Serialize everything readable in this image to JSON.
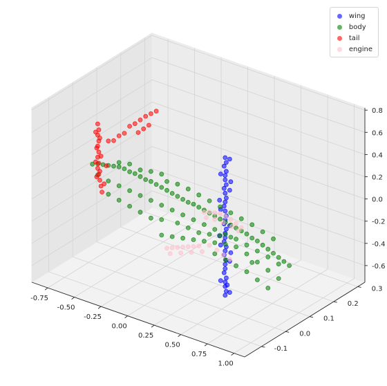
{
  "chart_data": {
    "type": "scatter",
    "projection": "3d",
    "title": "",
    "grid": true,
    "legend": {
      "placement": "top-right"
    },
    "axes": {
      "x": {
        "range": [
          -0.9,
          1.1
        ],
        "ticks": [
          "-0.75",
          "-0.50",
          "-0.25",
          "0.00",
          "0.25",
          "0.50",
          "0.75",
          "1.00"
        ]
      },
      "y": {
        "range": [
          -0.17,
          0.33
        ],
        "ticks": [
          "-0.1",
          "0.0",
          "0.1",
          "0.2",
          "0.3"
        ]
      },
      "z": {
        "range": [
          -0.75,
          0.82
        ],
        "ticks": [
          "-0.6",
          "-0.4",
          "-0.2",
          "0.0",
          "0.2",
          "0.4",
          "0.6",
          "0.8"
        ]
      }
    },
    "series": [
      {
        "name": "wing",
        "color": "#0000ff",
        "points": [
          [
            0.42,
            0.05,
            0.52
          ],
          [
            0.43,
            0.05,
            0.48
          ],
          [
            0.41,
            0.05,
            0.44
          ],
          [
            0.43,
            0.05,
            0.4
          ],
          [
            0.42,
            0.05,
            0.36
          ],
          [
            0.42,
            0.05,
            0.32
          ],
          [
            0.43,
            0.05,
            0.28
          ],
          [
            0.41,
            0.05,
            0.24
          ],
          [
            0.42,
            0.05,
            0.2
          ],
          [
            0.43,
            0.05,
            0.16
          ],
          [
            0.42,
            0.05,
            0.12
          ],
          [
            0.41,
            0.05,
            0.08
          ],
          [
            0.42,
            0.05,
            0.04
          ],
          [
            0.43,
            0.05,
            0.0
          ],
          [
            0.42,
            0.05,
            -0.04
          ],
          [
            0.41,
            0.05,
            -0.08
          ],
          [
            0.43,
            0.05,
            -0.12
          ],
          [
            0.42,
            0.05,
            -0.16
          ],
          [
            0.42,
            0.05,
            -0.2
          ],
          [
            0.41,
            0.05,
            -0.24
          ],
          [
            0.43,
            0.05,
            -0.28
          ],
          [
            0.42,
            0.05,
            -0.32
          ],
          [
            0.41,
            0.05,
            -0.36
          ],
          [
            0.43,
            0.05,
            -0.4
          ],
          [
            0.42,
            0.05,
            -0.44
          ],
          [
            0.42,
            0.05,
            -0.48
          ],
          [
            0.41,
            0.05,
            -0.52
          ],
          [
            0.43,
            0.05,
            -0.56
          ],
          [
            0.42,
            0.05,
            -0.6
          ],
          [
            0.42,
            0.05,
            -0.64
          ],
          [
            0.43,
            0.05,
            -0.68
          ],
          [
            0.42,
            0.05,
            -0.72
          ],
          [
            0.44,
            0.06,
            0.5
          ],
          [
            0.4,
            0.04,
            0.38
          ],
          [
            0.44,
            0.06,
            0.22
          ],
          [
            0.4,
            0.04,
            0.06
          ],
          [
            0.44,
            0.06,
            -0.1
          ],
          [
            0.4,
            0.04,
            -0.26
          ],
          [
            0.44,
            0.06,
            -0.42
          ],
          [
            0.4,
            0.04,
            -0.58
          ],
          [
            0.44,
            0.06,
            -0.7
          ],
          [
            0.45,
            0.06,
            -0.34
          ],
          [
            0.39,
            0.04,
            -0.18
          ],
          [
            0.45,
            0.06,
            0.3
          ],
          [
            0.39,
            0.04,
            0.14
          ],
          [
            0.44,
            0.05,
            -0.62
          ]
        ]
      },
      {
        "name": "body",
        "color": "#008000",
        "points": [
          [
            -0.85,
            0.06,
            0.02
          ],
          [
            -0.8,
            0.06,
            0.04
          ],
          [
            -0.75,
            0.06,
            0.05
          ],
          [
            -0.7,
            0.06,
            0.06
          ],
          [
            -0.65,
            0.06,
            0.07
          ],
          [
            -0.6,
            0.06,
            0.08
          ],
          [
            -0.55,
            0.06,
            0.08
          ],
          [
            -0.5,
            0.06,
            0.07
          ],
          [
            -0.45,
            0.06,
            0.07
          ],
          [
            -0.4,
            0.06,
            0.06
          ],
          [
            -0.35,
            0.06,
            0.05
          ],
          [
            -0.3,
            0.06,
            0.05
          ],
          [
            -0.25,
            0.06,
            0.04
          ],
          [
            -0.2,
            0.06,
            0.03
          ],
          [
            -0.15,
            0.06,
            0.02
          ],
          [
            -0.1,
            0.06,
            0.01
          ],
          [
            -0.05,
            0.06,
            0.0
          ],
          [
            0.0,
            0.06,
            -0.01
          ],
          [
            0.05,
            0.06,
            -0.02
          ],
          [
            0.1,
            0.06,
            -0.02
          ],
          [
            0.15,
            0.06,
            -0.03
          ],
          [
            0.2,
            0.06,
            -0.04
          ],
          [
            0.25,
            0.06,
            -0.05
          ],
          [
            0.3,
            0.06,
            -0.06
          ],
          [
            0.35,
            0.06,
            -0.07
          ],
          [
            0.4,
            0.06,
            -0.08
          ],
          [
            0.45,
            0.06,
            -0.09
          ],
          [
            0.5,
            0.06,
            -0.1
          ],
          [
            0.55,
            0.06,
            -0.11
          ],
          [
            0.6,
            0.06,
            -0.12
          ],
          [
            0.65,
            0.06,
            -0.14
          ],
          [
            0.7,
            0.06,
            -0.15
          ],
          [
            0.75,
            0.06,
            -0.17
          ],
          [
            0.8,
            0.06,
            -0.19
          ],
          [
            0.85,
            0.06,
            -0.21
          ],
          [
            0.9,
            0.06,
            -0.23
          ],
          [
            0.95,
            0.06,
            -0.25
          ],
          [
            1.0,
            0.06,
            -0.27
          ],
          [
            -0.8,
            0.06,
            -0.06
          ],
          [
            -0.7,
            0.06,
            -0.08
          ],
          [
            -0.6,
            0.06,
            -0.09
          ],
          [
            -0.5,
            0.06,
            -0.1
          ],
          [
            -0.4,
            0.06,
            -0.11
          ],
          [
            -0.3,
            0.06,
            -0.12
          ],
          [
            -0.2,
            0.06,
            -0.13
          ],
          [
            -0.1,
            0.06,
            -0.14
          ],
          [
            0.0,
            0.06,
            -0.15
          ],
          [
            0.1,
            0.06,
            -0.16
          ],
          [
            0.2,
            0.06,
            -0.17
          ],
          [
            0.3,
            0.06,
            -0.18
          ],
          [
            0.4,
            0.06,
            -0.19
          ],
          [
            0.5,
            0.06,
            -0.2
          ],
          [
            0.6,
            0.06,
            -0.22
          ],
          [
            0.7,
            0.06,
            -0.24
          ],
          [
            0.8,
            0.06,
            -0.26
          ],
          [
            0.9,
            0.06,
            -0.29
          ],
          [
            -0.2,
            0.06,
            -0.4
          ],
          [
            -0.1,
            0.06,
            -0.38
          ],
          [
            0.0,
            0.06,
            -0.36
          ],
          [
            0.1,
            0.06,
            -0.34
          ],
          [
            0.2,
            0.06,
            -0.32
          ],
          [
            0.3,
            0.06,
            -0.3
          ],
          [
            0.4,
            0.06,
            -0.28
          ],
          [
            0.5,
            0.06,
            -0.27
          ],
          [
            0.6,
            0.06,
            -0.3
          ],
          [
            0.7,
            0.06,
            -0.34
          ],
          [
            0.8,
            0.06,
            -0.38
          ],
          [
            0.9,
            0.06,
            -0.42
          ],
          [
            -0.15,
            0.06,
            0.1
          ],
          [
            -0.05,
            0.06,
            0.11
          ],
          [
            0.05,
            0.06,
            0.1
          ],
          [
            0.15,
            0.06,
            0.08
          ],
          [
            0.25,
            0.06,
            0.06
          ],
          [
            0.35,
            0.06,
            0.04
          ],
          [
            0.45,
            0.06,
            0.02
          ],
          [
            0.55,
            0.06,
            0.0
          ],
          [
            0.65,
            0.06,
            -0.02
          ],
          [
            0.75,
            0.06,
            -0.05
          ],
          [
            0.85,
            0.06,
            -0.08
          ],
          [
            -0.7,
            0.06,
            -0.2
          ],
          [
            -0.6,
            0.06,
            -0.22
          ],
          [
            -0.5,
            0.06,
            -0.24
          ],
          [
            -0.4,
            0.06,
            -0.26
          ],
          [
            -0.3,
            0.06,
            -0.28
          ],
          [
            -0.2,
            0.06,
            -0.26
          ],
          [
            0.3,
            0.06,
            -0.4
          ],
          [
            0.4,
            0.06,
            -0.42
          ],
          [
            0.5,
            0.06,
            -0.44
          ],
          [
            0.6,
            0.06,
            -0.46
          ],
          [
            0.7,
            0.06,
            -0.5
          ],
          [
            0.8,
            0.06,
            -0.54
          ],
          [
            -0.05,
            0.06,
            -0.24
          ],
          [
            0.05,
            0.06,
            -0.25
          ],
          [
            0.15,
            0.06,
            -0.26
          ],
          [
            0.25,
            0.06,
            -0.24
          ],
          [
            0.35,
            0.06,
            -0.22
          ],
          [
            0.45,
            0.06,
            -0.2
          ],
          [
            -0.6,
            0.06,
            0.12
          ],
          [
            -0.5,
            0.06,
            0.14
          ],
          [
            -0.4,
            0.06,
            0.12
          ],
          [
            -0.3,
            0.06,
            0.14
          ],
          [
            -0.2,
            0.06,
            0.15
          ],
          [
            0.65,
            0.06,
            -0.36
          ]
        ]
      },
      {
        "name": "tail",
        "color": "#ff0000",
        "points": [
          [
            -0.8,
            0.06,
            0.4
          ],
          [
            -0.79,
            0.06,
            0.35
          ],
          [
            -0.8,
            0.06,
            0.3
          ],
          [
            -0.79,
            0.06,
            0.25
          ],
          [
            -0.8,
            0.06,
            0.2
          ],
          [
            -0.79,
            0.06,
            0.15
          ],
          [
            -0.8,
            0.06,
            0.1
          ],
          [
            -0.79,
            0.06,
            0.05
          ],
          [
            -0.8,
            0.06,
            0.0
          ],
          [
            -0.79,
            0.06,
            -0.05
          ],
          [
            -0.78,
            0.06,
            -0.1
          ],
          [
            -0.77,
            0.06,
            -0.15
          ],
          [
            -0.76,
            0.06,
            -0.2
          ],
          [
            -0.82,
            0.06,
            0.32
          ],
          [
            -0.81,
            0.06,
            0.18
          ],
          [
            -0.82,
            0.06,
            0.05
          ],
          [
            -0.81,
            0.06,
            -0.08
          ],
          [
            -0.78,
            0.06,
            0.28
          ],
          [
            -0.77,
            0.06,
            0.12
          ],
          [
            -0.78,
            0.06,
            -0.02
          ],
          [
            -0.5,
            0.06,
            0.48
          ],
          [
            -0.45,
            0.06,
            0.52
          ],
          [
            -0.4,
            0.06,
            0.57
          ],
          [
            -0.35,
            0.06,
            0.62
          ],
          [
            -0.3,
            0.06,
            0.66
          ],
          [
            -0.25,
            0.06,
            0.7
          ],
          [
            -0.42,
            0.06,
            0.45
          ],
          [
            -0.37,
            0.06,
            0.5
          ],
          [
            -0.32,
            0.06,
            0.55
          ],
          [
            -0.6,
            0.06,
            0.36
          ],
          [
            -0.55,
            0.06,
            0.4
          ],
          [
            -0.65,
            0.06,
            0.3
          ],
          [
            -0.7,
            0.06,
            0.28
          ],
          [
            -0.72,
            0.06,
            0.05
          ],
          [
            -0.74,
            0.06,
            -0.12
          ]
        ]
      },
      {
        "name": "engine",
        "color": "#ffc0cb",
        "points": [
          [
            0.2,
            0.06,
            -0.06
          ],
          [
            0.25,
            0.06,
            -0.04
          ],
          [
            0.3,
            0.06,
            -0.03
          ],
          [
            0.35,
            0.06,
            -0.02
          ],
          [
            0.4,
            0.06,
            -0.03
          ],
          [
            0.45,
            0.06,
            -0.04
          ],
          [
            0.5,
            0.06,
            -0.06
          ],
          [
            0.55,
            0.06,
            -0.08
          ],
          [
            0.22,
            0.06,
            -0.1
          ],
          [
            0.3,
            0.06,
            -0.09
          ],
          [
            0.38,
            0.06,
            -0.09
          ],
          [
            0.46,
            0.06,
            -0.1
          ],
          [
            0.52,
            0.06,
            -0.12
          ],
          [
            -0.15,
            0.06,
            -0.5
          ],
          [
            -0.1,
            0.06,
            -0.48
          ],
          [
            -0.05,
            0.06,
            -0.46
          ],
          [
            0.0,
            0.06,
            -0.44
          ],
          [
            0.05,
            0.06,
            -0.42
          ],
          [
            0.1,
            0.06,
            -0.4
          ],
          [
            0.15,
            0.06,
            -0.38
          ],
          [
            -0.12,
            0.06,
            -0.54
          ],
          [
            -0.02,
            0.06,
            -0.5
          ],
          [
            0.08,
            0.06,
            -0.46
          ],
          [
            0.18,
            0.06,
            -0.42
          ],
          [
            0.25,
            0.06,
            -0.34
          ],
          [
            0.32,
            0.06,
            -0.36
          ],
          [
            0.38,
            0.06,
            -0.38
          ],
          [
            0.44,
            0.06,
            -0.4
          ]
        ]
      }
    ]
  }
}
